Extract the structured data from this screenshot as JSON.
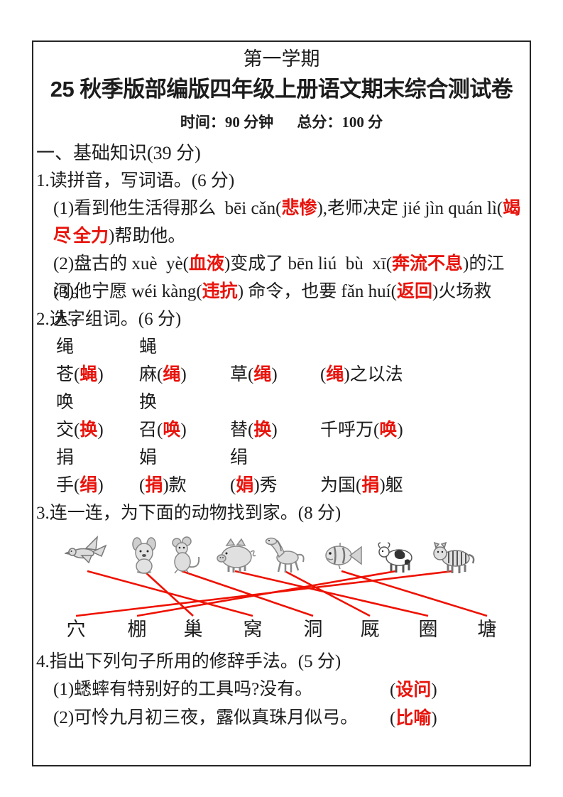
{
  "colors": {
    "red": "#e8140c",
    "line": "#ee1100",
    "text": "#1c1c1c",
    "border": "#262626"
  },
  "header": {
    "semester": "第一学期",
    "title": "25 秋季版部编版四年级上册语文期末综合测试卷",
    "time": "时间：90 分钟",
    "total": "总分：100 分"
  },
  "section1": {
    "heading": "一、基础知识(39 分)",
    "q1": {
      "label": "1.读拼音，写词语。(6 分)",
      "lines": [
        {
          "indent": 1,
          "segs": [
            {
              "t": "(1)看到他生活得那么  bēi cǎn("
            },
            {
              "t": "悲惨",
              "red": true
            },
            {
              "t": "),老师决定 jié jìn quán lì("
            },
            {
              "t": "竭尽",
              "red": true
            }
          ]
        },
        {
          "indent": 2,
          "segs": [
            {
              "t": "全力",
              "red": true
            },
            {
              "t": ")帮助他。"
            }
          ]
        },
        {
          "indent": 1,
          "segs": [
            {
              "t": "(2)盘古的 xuè  yè("
            },
            {
              "t": "血液",
              "red": true
            },
            {
              "t": ")变成了 bēn liú  bù  xī("
            },
            {
              "t": "奔流不息",
              "red": true
            },
            {
              "t": ")的江河。"
            }
          ]
        },
        {
          "indent": 1,
          "segs": [
            {
              "t": "(3)他宁愿 wéi kàng("
            },
            {
              "t": "违抗",
              "red": true
            },
            {
              "t": ") 命令，也要 fǎn huí("
            },
            {
              "t": "返回",
              "red": true
            },
            {
              "t": ")火场救人。"
            }
          ]
        }
      ]
    },
    "q2": {
      "label": "2.选字组词。(6 分)",
      "rows": [
        {
          "cells": [
            [
              {
                "t": "绳"
              }
            ],
            [
              {
                "t": "蝇"
              }
            ]
          ]
        },
        {
          "cells": [
            [
              {
                "t": "苍("
              },
              {
                "t": "蝇",
                "red": true
              },
              {
                "t": ")"
              }
            ],
            [
              {
                "t": "麻("
              },
              {
                "t": "绳",
                "red": true
              },
              {
                "t": ")"
              }
            ],
            [
              {
                "t": "草("
              },
              {
                "t": "绳",
                "red": true
              },
              {
                "t": ")"
              }
            ],
            [
              {
                "t": "("
              },
              {
                "t": "绳",
                "red": true
              },
              {
                "t": ")之以法"
              }
            ]
          ]
        },
        {
          "cells": [
            [
              {
                "t": "唤"
              }
            ],
            [
              {
                "t": "换"
              }
            ]
          ]
        },
        {
          "cells": [
            [
              {
                "t": "交("
              },
              {
                "t": "换",
                "red": true
              },
              {
                "t": ")"
              }
            ],
            [
              {
                "t": "召("
              },
              {
                "t": "唤",
                "red": true
              },
              {
                "t": ")"
              }
            ],
            [
              {
                "t": "替("
              },
              {
                "t": "换",
                "red": true
              },
              {
                "t": ")"
              }
            ],
            [
              {
                "t": "千呼万("
              },
              {
                "t": "唤",
                "red": true
              },
              {
                "t": ")"
              }
            ]
          ]
        },
        {
          "cells": [
            [
              {
                "t": "捐"
              }
            ],
            [
              {
                "t": "娟"
              }
            ],
            [
              {
                "t": "绢"
              }
            ]
          ]
        },
        {
          "cells": [
            [
              {
                "t": "手("
              },
              {
                "t": "绢",
                "red": true
              },
              {
                "t": ")"
              }
            ],
            [
              {
                "t": "("
              },
              {
                "t": "捐",
                "red": true
              },
              {
                "t": ")款"
              }
            ],
            [
              {
                "t": "("
              },
              {
                "t": "娟",
                "red": true
              },
              {
                "t": ")秀"
              }
            ],
            [
              {
                "t": "为国("
              },
              {
                "t": "捐",
                "red": true
              },
              {
                "t": ")躯"
              }
            ]
          ]
        }
      ]
    },
    "q3": {
      "label": "3.连一连，为下面的动物找到家。(8 分)",
      "animals": [
        "bird",
        "dog",
        "mouse",
        "pig",
        "horse",
        "fish",
        "cow",
        "tiger"
      ],
      "homes": [
        "穴",
        "棚",
        "巢",
        "窝",
        "洞",
        "厩",
        "圈",
        "塘"
      ],
      "connections": [
        {
          "from": "bird",
          "to": "窝"
        },
        {
          "from": "dog",
          "to": "巢"
        },
        {
          "from": "mouse",
          "to": "洞"
        },
        {
          "from": "pig",
          "to": "圈"
        },
        {
          "from": "horse",
          "to": "厩"
        },
        {
          "from": "fish",
          "to": "塘"
        },
        {
          "from": "cow",
          "to": "棚"
        },
        {
          "from": "tiger",
          "to": "穴"
        }
      ]
    },
    "q4": {
      "label": "4.指出下列句子所用的修辞手法。(5 分)",
      "items": [
        {
          "text": "(1)蟋蟀有特别好的工具吗?没有。",
          "answer": "设问"
        },
        {
          "text": "(2)可怜九月初三夜，露似真珠月似弓。",
          "answer": "比喻"
        }
      ]
    }
  }
}
